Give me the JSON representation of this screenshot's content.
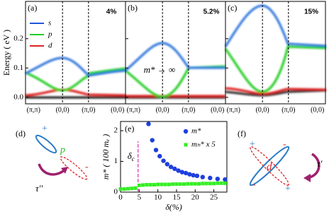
{
  "chart_data": [
    {
      "type": "band",
      "panel_label": "(a)",
      "annotation": "4%",
      "y_label": "Energy ( eV )",
      "categories": [
        "(π,π)",
        "(0,0)",
        "(π,0)",
        "(0,0)"
      ],
      "ylim": [
        -0.022,
        0.327
      ],
      "yticks": [
        {
          "value": 0,
          "label": "0.0"
        },
        {
          "value": 0.1,
          "label": "0.1"
        },
        {
          "value": 0.2,
          "label": "0.2"
        }
      ],
      "legend": [
        {
          "name": "s",
          "color": "#2255dd"
        },
        {
          "name": "p",
          "color": "#22cc22"
        },
        {
          "name": "d",
          "color": "#dd2222"
        }
      ]
    },
    {
      "type": "band",
      "panel_label": "(b)",
      "annotation": "5.2%",
      "note": "m* → ∞",
      "categories": [
        "(π,π)",
        "(0,0)",
        "(π,0)",
        "(0,0)"
      ],
      "ylim": [
        -0.022,
        0.327
      ],
      "yticks": [
        0,
        0.1,
        0.2
      ]
    },
    {
      "type": "band",
      "panel_label": "(c)",
      "annotation": "15%",
      "categories": [
        "(π,π)",
        "(0,0)",
        "(π,0)",
        "(0,0)"
      ],
      "ylim": [
        -0.022,
        0.327
      ],
      "yticks": [
        0,
        0.1,
        0.2
      ]
    },
    {
      "type": "scatter",
      "panel_label": "(e)",
      "x_label": "δ(%)",
      "y_label": "m* ( 100 mₑ )",
      "xlim": [
        0,
        28.5
      ],
      "ylim": [
        0,
        2.3
      ],
      "xticks": [
        0,
        5,
        10,
        15,
        20,
        25
      ],
      "yticks": [
        0,
        1,
        2
      ],
      "vline": {
        "x": 4.7,
        "label": "δ",
        "sub": "c",
        "color": "#dd33aa"
      },
      "series": [
        {
          "name": "m*",
          "color": "#1f3fdd",
          "marker": "circle",
          "x": [
            7.5,
            8.5,
            9.5,
            10.5,
            11.5,
            12.5,
            13.5,
            14.5,
            15.5,
            16.5,
            17.5,
            18.5,
            19.5,
            20.5,
            22,
            24,
            26,
            28
          ],
          "values": [
            2.22,
            1.69,
            1.37,
            1.17,
            1.02,
            0.91,
            0.82,
            0.76,
            0.7,
            0.65,
            0.62,
            0.58,
            0.55,
            0.53,
            0.49,
            0.46,
            0.43,
            0.41
          ]
        },
        {
          "name": "mₕ* x 5",
          "color": "#33ee22",
          "marker": "square",
          "x": [
            0,
            1,
            2,
            3,
            4,
            5,
            6,
            7,
            8,
            9,
            10,
            11,
            12,
            13,
            14,
            15,
            16,
            17,
            18,
            19,
            20,
            21,
            22,
            23,
            24,
            25,
            26,
            27,
            28
          ],
          "values": [
            0.1,
            0.1,
            0.11,
            0.12,
            0.13,
            0.22,
            0.23,
            0.24,
            0.24,
            0.24,
            0.25,
            0.25,
            0.25,
            0.25,
            0.26,
            0.26,
            0.26,
            0.26,
            0.27,
            0.27,
            0.27,
            0.27,
            0.28,
            0.28,
            0.28,
            0.28,
            0.29,
            0.29,
            0.29
          ]
        }
      ]
    }
  ],
  "diagrams": {
    "d": {
      "label": "(d)",
      "plus": "+",
      "orbital": "p",
      "minus": "-",
      "hopping": "τ''"
    },
    "f": {
      "label": "(f)",
      "plus1": "+",
      "minus1": "-",
      "orbital": "d",
      "minus2": "-",
      "plus2": "+",
      "hopping": "τ'"
    }
  }
}
